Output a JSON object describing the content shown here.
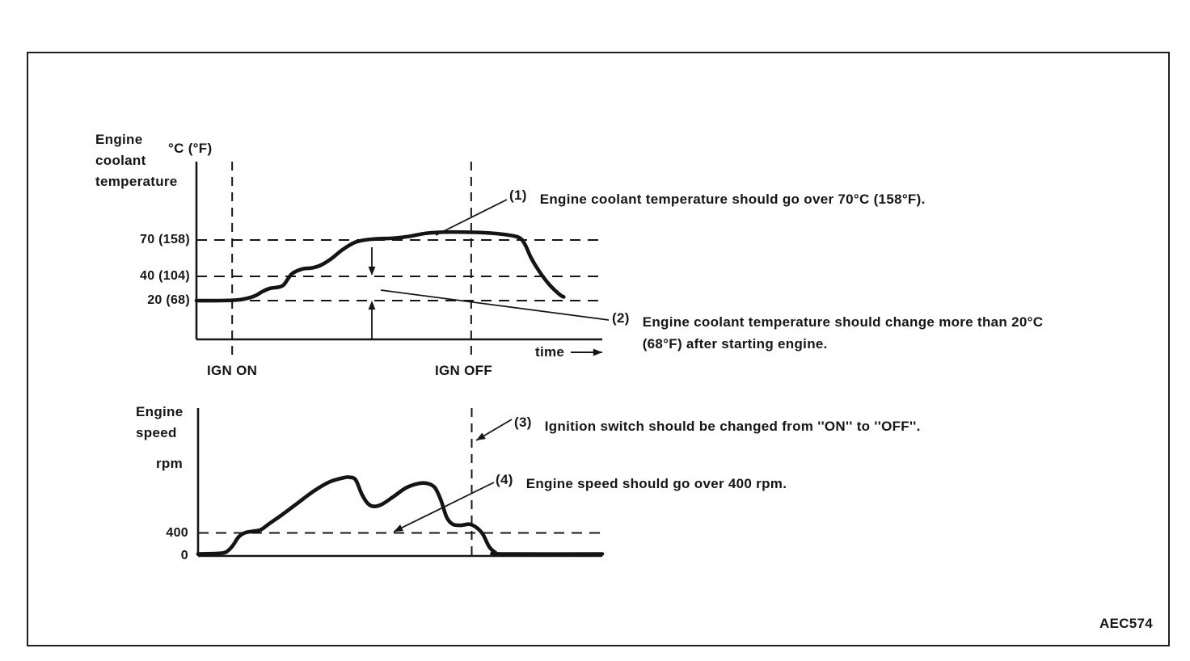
{
  "figure": {
    "code_label": "AEC574"
  },
  "top_chart": {
    "axis_title": "Engine\ncoolant\ntemperature",
    "unit_label": "°C (°F)",
    "ticks": [
      {
        "label": "70 (158)"
      },
      {
        "label": "40 (104)"
      },
      {
        "label": "20 (68)"
      }
    ],
    "time_label": "time",
    "ign_on_label": "IGN ON",
    "ign_off_label": "IGN OFF"
  },
  "bottom_chart": {
    "axis_title": "Engine\nspeed",
    "unit_label": "rpm",
    "ticks": [
      {
        "label": "400"
      },
      {
        "label": "0"
      }
    ]
  },
  "annotations": [
    {
      "marker": "(1)",
      "text": "Engine coolant temperature should go over 70°C (158°F)."
    },
    {
      "marker": "(2)",
      "text": "Engine coolant temperature should change more than 20°C\n(68°F) after starting engine."
    },
    {
      "marker": "(3)",
      "text": "Ignition switch should be changed from ''ON'' to ''OFF''."
    },
    {
      "marker": "(4)",
      "text": "Engine speed should go over 400 rpm."
    }
  ],
  "chart_data": [
    {
      "type": "line",
      "title": "Engine coolant temperature vs time",
      "xlabel": "time",
      "ylabel": "Engine coolant temperature, °C (°F)",
      "x_range": [
        0,
        10
      ],
      "ylim": [
        0,
        95
      ],
      "grid": "dashed horizontal reference lines",
      "legend": "none",
      "reference_lines_y": [
        70,
        40,
        20
      ],
      "reference_line_labels": [
        "70 (158)",
        "40 (104)",
        "20 (68)"
      ],
      "events": [
        {
          "label": "IGN ON",
          "x": 0.88
        },
        {
          "label": "IGN OFF",
          "x": 6.77
        }
      ],
      "series": [
        {
          "name": "engine_coolant_temperature_C",
          "points": [
            [
              0,
              20
            ],
            [
              0.6,
              20
            ],
            [
              1.0,
              20.5
            ],
            [
              1.2,
              21.5
            ],
            [
              1.45,
              24
            ],
            [
              1.6,
              27
            ],
            [
              1.8,
              30
            ],
            [
              2.0,
              31
            ],
            [
              2.15,
              33
            ],
            [
              2.35,
              42
            ],
            [
              2.6,
              46
            ],
            [
              2.85,
              47
            ],
            [
              3.05,
              49
            ],
            [
              3.3,
              54
            ],
            [
              3.6,
              62
            ],
            [
              3.9,
              68
            ],
            [
              4.15,
              70
            ],
            [
              4.45,
              71
            ],
            [
              4.85,
              71.5
            ],
            [
              5.25,
              73
            ],
            [
              5.65,
              75.5
            ],
            [
              6.1,
              76.5
            ],
            [
              6.6,
              76.5
            ],
            [
              7.1,
              76
            ],
            [
              7.6,
              74.5
            ],
            [
              7.95,
              72
            ],
            [
              8.1,
              66
            ],
            [
              8.25,
              55
            ],
            [
              8.45,
              44
            ],
            [
              8.7,
              33
            ],
            [
              8.95,
              25
            ],
            [
              9.05,
              23
            ]
          ]
        }
      ]
    },
    {
      "type": "line",
      "title": "Engine speed vs time",
      "xlabel": "time",
      "ylabel": "Engine speed, rpm",
      "x_range": [
        0,
        10
      ],
      "ylim": [
        0,
        1600
      ],
      "grid": "dashed horizontal reference line",
      "legend": "none",
      "reference_lines_y": [
        400
      ],
      "reference_line_labels": [
        "400"
      ],
      "events": [
        {
          "label": "IGN OFF",
          "x": 6.77
        }
      ],
      "series": [
        {
          "name": "engine_speed_rpm",
          "points": [
            [
              0,
              0
            ],
            [
              0.5,
              10
            ],
            [
              0.7,
              40
            ],
            [
              0.85,
              150
            ],
            [
              1.0,
              320
            ],
            [
              1.15,
              400
            ],
            [
              1.35,
              430
            ],
            [
              1.55,
              460
            ],
            [
              1.75,
              570
            ],
            [
              2.05,
              730
            ],
            [
              2.45,
              960
            ],
            [
              2.85,
              1190
            ],
            [
              3.25,
              1370
            ],
            [
              3.6,
              1450
            ],
            [
              3.75,
              1460
            ],
            [
              3.9,
              1410
            ],
            [
              4.05,
              1140
            ],
            [
              4.2,
              960
            ],
            [
              4.35,
              905
            ],
            [
              4.55,
              945
            ],
            [
              4.85,
              1100
            ],
            [
              5.15,
              1260
            ],
            [
              5.45,
              1340
            ],
            [
              5.65,
              1345
            ],
            [
              5.85,
              1270
            ],
            [
              6.0,
              1040
            ],
            [
              6.15,
              700
            ],
            [
              6.3,
              565
            ],
            [
              6.5,
              545
            ],
            [
              6.72,
              565
            ],
            [
              6.9,
              495
            ],
            [
              7.05,
              370
            ],
            [
              7.2,
              140
            ],
            [
              7.35,
              30
            ],
            [
              7.5,
              0
            ],
            [
              10,
              0
            ]
          ]
        }
      ]
    }
  ]
}
